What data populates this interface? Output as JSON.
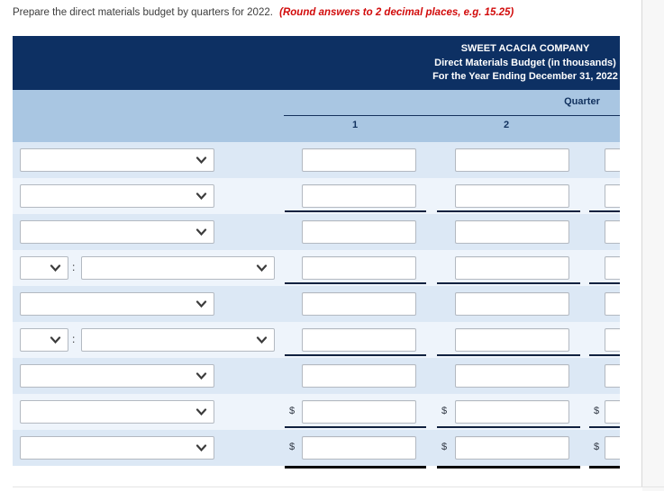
{
  "question": {
    "text": "Prepare the direct materials budget by quarters for 2022.",
    "note": "(Round answers to 2 decimal places, e.g. 15.25)"
  },
  "table": {
    "title_lines": [
      "SWEET ACACIA COMPANY",
      "Direct Materials Budget (in thousands)",
      "For the Year Ending December 31, 2022"
    ],
    "quarter_label": "Quarter",
    "quarter_columns": [
      "1",
      "2"
    ],
    "currency_symbol": "$",
    "colon": ":",
    "rows": [
      {
        "left": "single",
        "dollar": false,
        "underline_after": false,
        "dropdown_value": "",
        "input_values": [
          "",
          "",
          ""
        ]
      },
      {
        "left": "single",
        "dollar": false,
        "underline_after": true,
        "dropdown_value": "",
        "input_values": [
          "",
          "",
          ""
        ]
      },
      {
        "left": "single",
        "dollar": false,
        "underline_after": false,
        "dropdown_value": "",
        "input_values": [
          "",
          "",
          ""
        ]
      },
      {
        "left": "pair",
        "dollar": false,
        "underline_after": true,
        "dropdown_value": "",
        "dropdown_value_2": "",
        "input_values": [
          "",
          "",
          ""
        ]
      },
      {
        "left": "single",
        "dollar": false,
        "underline_after": false,
        "dropdown_value": "",
        "input_values": [
          "",
          "",
          ""
        ]
      },
      {
        "left": "pair",
        "dollar": false,
        "underline_after": true,
        "dropdown_value": "",
        "dropdown_value_2": "",
        "input_values": [
          "",
          "",
          ""
        ]
      },
      {
        "left": "single",
        "dollar": false,
        "underline_after": false,
        "dropdown_value": "",
        "input_values": [
          "",
          "",
          ""
        ]
      },
      {
        "left": "single",
        "dollar": true,
        "underline_after": true,
        "dropdown_value": "",
        "input_values": [
          "",
          "",
          ""
        ]
      },
      {
        "left": "single",
        "dollar": true,
        "underline_after": false,
        "double_rule_after": true,
        "dropdown_value": "",
        "input_values": [
          "",
          "",
          ""
        ]
      }
    ]
  },
  "colors": {
    "header_bg": "#0d3063",
    "band_bg": "#a9c6e2",
    "row_dark": "#dce8f5",
    "row_light": "#eef4fb",
    "note_red": "#d20b0b"
  },
  "icons": {
    "dropdown": "chevron-down-icon"
  }
}
